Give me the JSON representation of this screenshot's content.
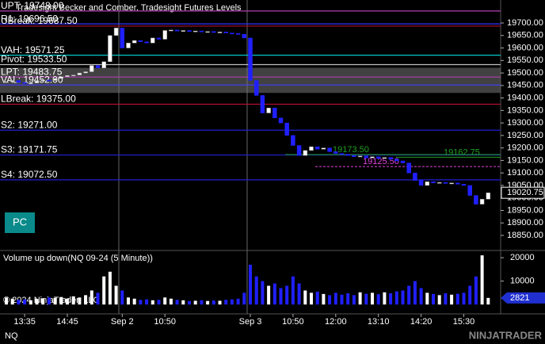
{
  "chart_data": {
    "type": "candlestick",
    "title": "Tradesight Becker and Comber, Tradesight Futures Levels",
    "categories": [
      null,
      null,
      null,
      "13:35",
      null,
      null,
      null,
      null,
      null,
      null,
      "14:45",
      null,
      null,
      null,
      null,
      null,
      null,
      null,
      null,
      "Sep 2",
      null,
      null,
      null,
      null,
      null,
      null,
      "10:50",
      null,
      null,
      null,
      null,
      null,
      null,
      null,
      null,
      null,
      null,
      null,
      null,
      null,
      "Sep 3",
      null,
      null,
      null,
      null,
      null,
      null,
      "10:50",
      null,
      null,
      null,
      null,
      null,
      null,
      "12:00",
      null,
      null,
      null,
      null,
      null,
      null,
      "13:10",
      null,
      null,
      null,
      null,
      null,
      null,
      "14:20",
      null,
      null,
      null,
      null,
      null,
      null,
      "15:30",
      null,
      null,
      null,
      null
    ],
    "close": [
      19465,
      19470,
      19462,
      19458,
      19460,
      19468,
      19472,
      19470,
      19478,
      19485,
      19490,
      19492,
      19500,
      19505,
      19530,
      19520,
      19545,
      19650,
      19680,
      19600,
      19620,
      19630,
      19625,
      19620,
      19640,
      19635,
      19670,
      19672,
      19668,
      19670,
      19666,
      19668,
      19664,
      19666,
      19662,
      19664,
      19660,
      19658,
      19655,
      19640,
      19470,
      19410,
      19340,
      19360,
      19320,
      19300,
      19250,
      19210,
      19170,
      19190,
      19205,
      19195,
      19200,
      19185,
      19178,
      19175,
      19170,
      19165,
      19168,
      19160,
      19165,
      19158,
      19162,
      19155,
      19148,
      19140,
      19100,
      19070,
      19050,
      19065,
      19060,
      19062,
      19058,
      19060,
      19055,
      19050,
      19010,
      18975,
      18995,
      19020.75
    ],
    "color_up": "#ffffff",
    "color_down": "#2020ff",
    "ylim": [
      18793,
      19792
    ],
    "yticks": [
      {
        "value": 18850,
        "label": "18850.00"
      },
      {
        "value": 18900,
        "label": "18900.00"
      },
      {
        "value": 18950,
        "label": "18950.00"
      },
      {
        "value": 19000,
        "label": "19000.00"
      },
      {
        "value": 19050,
        "label": "19050.00"
      },
      {
        "value": 19100,
        "label": "19100.00"
      },
      {
        "value": 19150,
        "label": "19150.00"
      },
      {
        "value": 19200,
        "label": "19200.00"
      },
      {
        "value": 19250,
        "label": "19250.00"
      },
      {
        "value": 19300,
        "label": "19300.00"
      },
      {
        "value": 19350,
        "label": "19350.00"
      },
      {
        "value": 19400,
        "label": "19400.00"
      },
      {
        "value": 19450,
        "label": "19450.00"
      },
      {
        "value": 19500,
        "label": "19500.00"
      },
      {
        "value": 19550,
        "label": "19550.00"
      },
      {
        "value": 19600,
        "label": "19600.00"
      },
      {
        "value": 19650,
        "label": "19650.00"
      },
      {
        "value": 19700,
        "label": "19700.00"
      }
    ],
    "levels": [
      {
        "label": "UPT: 19748.00",
        "value": 19748,
        "color": "#b040b0"
      },
      {
        "label": "R1: 19696.50",
        "value": 19696.5,
        "color": "#3030ff"
      },
      {
        "label": "UBreak: 19687.50",
        "value": 19687.5,
        "color": "#b01030"
      },
      {
        "label": "VAH: 19571.25",
        "value": 19571.25,
        "color": "#00c8c8"
      },
      {
        "label": "Pivot: 19533.50",
        "value": 19533.5,
        "color": "#c0c0c0"
      },
      {
        "label": "LPT: 19483.75",
        "value": 19483.75,
        "color": "#b040b0"
      },
      {
        "label": "VAL: 19452.00",
        "value": 19452,
        "color": "#4040ff"
      },
      {
        "label": "LBreak: 19375.00",
        "value": 19375,
        "color": "#b01030"
      },
      {
        "label": "S2: 19271.00",
        "value": 19271,
        "color": "#2020d0"
      },
      {
        "label": "S3: 19171.75",
        "value": 19171.75,
        "color": "#2020d0"
      },
      {
        "label": "S4: 19072.50",
        "value": 19072.5,
        "color": "#2020d0"
      }
    ],
    "annotations": [
      {
        "text": "19173.50",
        "value": 19173.5,
        "color": "#20a020"
      },
      {
        "text": "19125.50",
        "value": 19125.5,
        "color": "#e040e0"
      },
      {
        "text": "19162.75",
        "value": 19162.75,
        "color": "#20a020"
      }
    ],
    "volume": {
      "title": "Volume up down(NQ 09-24 (5 Minute))",
      "values": [
        3000,
        2500,
        2000,
        2200,
        1800,
        2400,
        2600,
        3000,
        2800,
        3200,
        2500,
        3500,
        3000,
        4000,
        6000,
        5000,
        12000,
        14000,
        8000,
        6000,
        3000,
        2500,
        2000,
        2200,
        1800,
        2000,
        3000,
        2500,
        2000,
        1800,
        1500,
        1600,
        1800,
        1500,
        1700,
        1600,
        2000,
        2200,
        2500,
        5000,
        17000,
        12000,
        10000,
        8000,
        9000,
        7000,
        8000,
        12000,
        9000,
        6000,
        5000,
        5500,
        4500,
        4000,
        5000,
        4200,
        4800,
        4000,
        5200,
        4600,
        5000,
        4400,
        5200,
        4800,
        5600,
        6000,
        8000,
        10000,
        7000,
        5000,
        4500,
        4000,
        4800,
        4200,
        4600,
        5000,
        8000,
        12000,
        21000,
        2821
      ],
      "ylim": [
        -4000,
        22400
      ],
      "yticks": [
        10000,
        20000
      ]
    },
    "copyright": "© 2024 NinjaTrader, LLC",
    "instrument": "NQ",
    "button": "PC",
    "brand": "NINJATRADER"
  }
}
